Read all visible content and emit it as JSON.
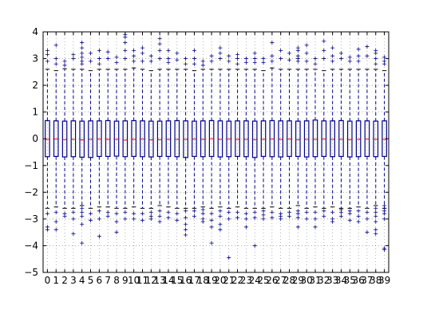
{
  "chart_data": {
    "type": "boxplot",
    "title": "",
    "xlabel": "",
    "ylabel": "",
    "ylim": [
      -5,
      4
    ],
    "y_ticks": [
      -5,
      -4,
      -3,
      -2,
      -1,
      0,
      1,
      2,
      3,
      4
    ],
    "grid": "dotted",
    "categories": [
      "0",
      "1",
      "2",
      "3",
      "4",
      "5",
      "6",
      "7",
      "8",
      "9",
      "10",
      "11",
      "12",
      "13",
      "14",
      "15",
      "16",
      "17",
      "18",
      "19",
      "20",
      "21",
      "22",
      "23",
      "24",
      "25",
      "26",
      "27",
      "28",
      "29",
      "30",
      "31",
      "32",
      "33",
      "34",
      "35",
      "36",
      "37",
      "38",
      "39"
    ],
    "colors": {
      "box": "#00008b",
      "median": "#ff0000",
      "whisker": "#00008b",
      "flier": "#00008b",
      "grid": "#7f7f7f",
      "axis": "#000000"
    },
    "boxes": [
      {
        "q1": -0.67,
        "median": -0.02,
        "q3": 0.68,
        "whisker_low": -2.6,
        "whisker_high": 2.6,
        "fliers": [
          3.3,
          3.15,
          2.9,
          -2.8,
          -3.3,
          -3.4
        ]
      },
      {
        "q1": -0.66,
        "median": -0.01,
        "q3": 0.67,
        "whisker_low": -2.55,
        "whisker_high": 2.55,
        "fliers": [
          3.5,
          3.0,
          2.8,
          -2.75,
          -3.1,
          -3.4
        ]
      },
      {
        "q1": -0.68,
        "median": -0.03,
        "q3": 0.66,
        "whisker_low": -2.6,
        "whisker_high": 2.62,
        "fliers": [
          2.9,
          2.75,
          -2.8,
          -2.9
        ]
      },
      {
        "q1": -0.67,
        "median": -0.02,
        "q3": 0.67,
        "whisker_low": -2.6,
        "whisker_high": 2.6,
        "fliers": [
          3.15,
          3.0,
          -2.75,
          -3.0,
          -3.55
        ]
      },
      {
        "q1": -0.69,
        "median": -0.04,
        "q3": 0.66,
        "whisker_low": -2.5,
        "whisker_high": 2.6,
        "fliers": [
          3.6,
          3.4,
          3.2,
          3.05,
          2.9,
          2.8,
          -2.6,
          -2.75,
          -2.9,
          -3.2,
          -3.9
        ]
      },
      {
        "q1": -0.7,
        "median": -0.02,
        "q3": 0.67,
        "whisker_low": -2.6,
        "whisker_high": 2.55,
        "fliers": [
          3.2,
          2.9,
          -2.8,
          -3.05
        ]
      },
      {
        "q1": -0.66,
        "median": -0.01,
        "q3": 0.67,
        "whisker_low": -2.55,
        "whisker_high": 2.6,
        "fliers": [
          3.3,
          3.0,
          2.8,
          -2.7,
          -3.0,
          -3.65
        ]
      },
      {
        "q1": -0.66,
        "median": -0.02,
        "q3": 0.68,
        "whisker_low": -2.55,
        "whisker_high": 2.6,
        "fliers": [
          3.25,
          3.0,
          -2.75,
          -2.9
        ]
      },
      {
        "q1": -0.65,
        "median": -0.02,
        "q3": 0.66,
        "whisker_low": -2.6,
        "whisker_high": 2.6,
        "fliers": [
          3.05,
          2.85,
          -2.8,
          -3.1,
          -3.5
        ]
      },
      {
        "q1": -0.67,
        "median": -0.05,
        "q3": 0.67,
        "whisker_low": -2.6,
        "whisker_high": 2.6,
        "fliers": [
          3.9,
          3.8,
          3.6,
          3.3,
          3.0,
          -2.75,
          -3.0
        ]
      },
      {
        "q1": -0.66,
        "median": -0.02,
        "q3": 0.68,
        "whisker_low": -2.55,
        "whisker_high": 2.65,
        "fliers": [
          3.3,
          3.1,
          2.9,
          -2.8,
          -3.0
        ]
      },
      {
        "q1": -0.67,
        "median": -0.01,
        "q3": 0.67,
        "whisker_low": -2.6,
        "whisker_high": 2.6,
        "fliers": [
          3.4,
          3.2,
          2.9,
          -2.8,
          -3.05
        ]
      },
      {
        "q1": -0.68,
        "median": -0.04,
        "q3": 0.66,
        "whisker_low": -2.6,
        "whisker_high": 2.55,
        "fliers": [
          3.1,
          2.9,
          -2.75,
          -2.9,
          -3.0
        ]
      },
      {
        "q1": -0.66,
        "median": -0.03,
        "q3": 0.66,
        "whisker_low": -2.5,
        "whisker_high": 2.6,
        "fliers": [
          3.75,
          3.55,
          3.3,
          3.0,
          -2.7,
          -2.9,
          -3.1
        ]
      },
      {
        "q1": -0.66,
        "median": -0.02,
        "q3": 0.67,
        "whisker_low": -2.55,
        "whisker_high": 2.6,
        "fliers": [
          3.3,
          3.0,
          2.85,
          -2.75,
          -2.95
        ]
      },
      {
        "q1": -0.67,
        "median": -0.02,
        "q3": 0.68,
        "whisker_low": -2.6,
        "whisker_high": 2.6,
        "fliers": [
          3.2,
          2.95,
          -2.8,
          -3.05
        ]
      },
      {
        "q1": -0.7,
        "median": -0.02,
        "q3": 0.67,
        "whisker_low": -2.6,
        "whisker_high": 2.6,
        "fliers": [
          3.0,
          2.8,
          -2.7,
          -2.95,
          -3.2,
          -3.4,
          -3.6
        ]
      },
      {
        "q1": -0.66,
        "median": -0.01,
        "q3": 0.66,
        "whisker_low": -2.6,
        "whisker_high": 2.55,
        "fliers": [
          3.3,
          3.0,
          2.8,
          -2.7,
          -2.9
        ]
      },
      {
        "q1": -0.67,
        "median": -0.02,
        "q3": 0.67,
        "whisker_low": -2.55,
        "whisker_high": 2.6,
        "fliers": [
          2.9,
          2.75,
          -2.65,
          -2.8,
          -3.0,
          -3.1
        ]
      },
      {
        "q1": -0.66,
        "median": 0.0,
        "q3": 0.68,
        "whisker_low": -2.6,
        "whisker_high": 2.6,
        "fliers": [
          3.1,
          2.9,
          -2.8,
          -3.05,
          -3.3,
          -3.9
        ]
      },
      {
        "q1": -0.68,
        "median": -0.02,
        "q3": 0.67,
        "whisker_low": -2.55,
        "whisker_high": 2.6,
        "fliers": [
          3.4,
          3.2,
          3.0,
          -2.7,
          -2.9,
          -3.2,
          -3.4
        ]
      },
      {
        "q1": -0.67,
        "median": -0.01,
        "q3": 0.66,
        "whisker_low": -2.6,
        "whisker_high": 2.6,
        "fliers": [
          3.1,
          2.9,
          -2.75,
          -3.0,
          -4.45
        ]
      },
      {
        "q1": -0.66,
        "median": -0.02,
        "q3": 0.67,
        "whisker_low": -2.55,
        "whisker_high": 2.6,
        "fliers": [
          3.15,
          3.0,
          2.8,
          -2.75,
          -2.95
        ]
      },
      {
        "q1": -0.67,
        "median": -0.02,
        "q3": 0.67,
        "whisker_low": -2.6,
        "whisker_high": 2.6,
        "fliers": [
          3.0,
          2.85,
          -2.8,
          -3.0,
          -3.3
        ]
      },
      {
        "q1": -0.7,
        "median": -0.03,
        "q3": 0.66,
        "whisker_low": -2.6,
        "whisker_high": 2.6,
        "fliers": [
          3.2,
          3.0,
          2.85,
          -2.75,
          -2.95,
          -4.0
        ]
      },
      {
        "q1": -0.66,
        "median": -0.02,
        "q3": 0.67,
        "whisker_low": -2.6,
        "whisker_high": 2.55,
        "fliers": [
          3.0,
          2.85,
          -2.7,
          -2.85,
          -3.0
        ]
      },
      {
        "q1": -0.67,
        "median": -0.01,
        "q3": 0.68,
        "whisker_low": -2.55,
        "whisker_high": 2.65,
        "fliers": [
          3.6,
          3.1,
          2.9,
          -2.75,
          -2.95
        ]
      },
      {
        "q1": -0.68,
        "median": -0.02,
        "q3": 0.67,
        "whisker_low": -2.6,
        "whisker_high": 2.6,
        "fliers": [
          3.3,
          3.0,
          -2.8,
          -2.9,
          -3.0
        ]
      },
      {
        "q1": -0.66,
        "median": -0.01,
        "q3": 0.67,
        "whisker_low": -2.6,
        "whisker_high": 2.6,
        "fliers": [
          3.2,
          2.95,
          -2.75,
          -2.9
        ]
      },
      {
        "q1": -0.66,
        "median": -0.03,
        "q3": 0.66,
        "whisker_low": -2.5,
        "whisker_high": 2.6,
        "fliers": [
          3.4,
          3.3,
          3.1,
          3.0,
          2.9,
          -2.7,
          -2.8,
          -2.95,
          -3.3
        ]
      },
      {
        "q1": -0.68,
        "median": -0.02,
        "q3": 0.67,
        "whisker_low": -2.6,
        "whisker_high": 2.6,
        "fliers": [
          3.5,
          3.2,
          2.9,
          -2.75,
          -3.0
        ]
      },
      {
        "q1": -0.67,
        "median": -0.02,
        "q3": 0.7,
        "whisker_low": -2.55,
        "whisker_high": 2.6,
        "fliers": [
          3.0,
          2.8,
          -2.75,
          -3.0,
          -3.3
        ]
      },
      {
        "q1": -0.66,
        "median": -0.01,
        "q3": 0.67,
        "whisker_low": -2.6,
        "whisker_high": 2.55,
        "fliers": [
          3.65,
          3.3,
          3.0,
          -2.7,
          -2.9
        ]
      },
      {
        "q1": -0.67,
        "median": -0.02,
        "q3": 0.67,
        "whisker_low": -2.55,
        "whisker_high": 2.6,
        "fliers": [
          3.4,
          3.1,
          2.9,
          -2.75,
          -3.0,
          -3.1
        ]
      },
      {
        "q1": -0.66,
        "median": -0.02,
        "q3": 0.68,
        "whisker_low": -2.6,
        "whisker_high": 2.6,
        "fliers": [
          3.2,
          3.0,
          -2.65,
          -2.75,
          -2.9
        ]
      },
      {
        "q1": -0.68,
        "median": -0.03,
        "q3": 0.66,
        "whisker_low": -2.6,
        "whisker_high": 2.6,
        "fliers": [
          3.05,
          2.9,
          -2.7,
          -2.8,
          -3.05
        ]
      },
      {
        "q1": -0.67,
        "median": -0.02,
        "q3": 0.67,
        "whisker_low": -2.55,
        "whisker_high": 2.6,
        "fliers": [
          3.35,
          3.1,
          2.9,
          -2.7,
          -2.9,
          -3.1
        ]
      },
      {
        "q1": -0.66,
        "median": -0.01,
        "q3": 0.67,
        "whisker_low": -2.6,
        "whisker_high": 2.6,
        "fliers": [
          3.45,
          3.1,
          -2.75,
          -3.0,
          -3.5
        ]
      },
      {
        "q1": -0.67,
        "median": -0.02,
        "q3": 0.66,
        "whisker_low": -2.5,
        "whisker_high": 2.6,
        "fliers": [
          3.3,
          3.2,
          3.0,
          2.8,
          -2.6,
          -2.75,
          -2.9,
          -3.1,
          -3.4,
          -3.55
        ]
      },
      {
        "q1": -0.66,
        "median": -0.02,
        "q3": 0.67,
        "whisker_low": -2.6,
        "whisker_high": 2.55,
        "fliers": [
          3.05,
          2.9,
          2.8,
          -2.5,
          -2.6,
          -2.7,
          -2.8,
          -3.0,
          -4.1,
          -4.15
        ]
      }
    ]
  }
}
